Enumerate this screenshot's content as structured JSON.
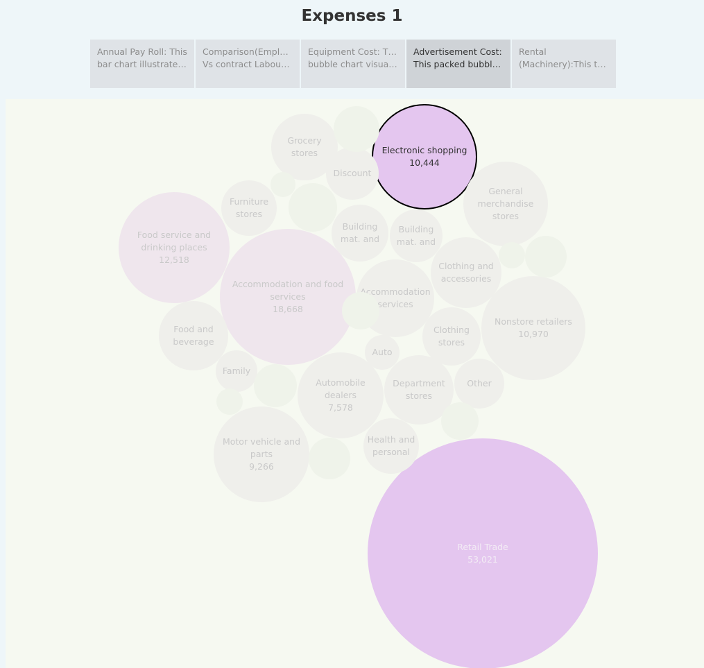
{
  "dashboard": {
    "title": "Expenses 1"
  },
  "tabs": [
    {
      "line1": "Annual Pay Roll: This",
      "line2": "bar chart illustrates t..",
      "active": false
    },
    {
      "line1": "Comparison(Employee",
      "line2": "Vs contract Labours): ..",
      "active": false
    },
    {
      "line1": "Equipment Cost: This",
      "line2": "bubble chart visualize..",
      "active": false
    },
    {
      "line1": "Advertisement Cost:",
      "line2": "This packed bubble ch..",
      "active": true
    },
    {
      "line1": "Rental",
      "line2": "(Machinery):This tree..",
      "active": false
    }
  ],
  "colors": {
    "highlight": "#e4c6ef",
    "faded_pink": "#efe6ed",
    "faded_gray": "#efefeb",
    "empty_bubble": "#eff3ea",
    "faded_text": "#c9c9c9",
    "active_text": "#333333",
    "retail_text": "#f3ecf5"
  },
  "chart_data": {
    "type": "packed_bubble",
    "bubbles": [
      {
        "name": "Retail Trade",
        "value": 53021,
        "label_lines": [
          "Retail Trade"
        ],
        "value_label": "53,021",
        "style": "highlight"
      },
      {
        "name": "Accommodation and food services",
        "value": 18668,
        "label_lines": [
          "Accommodation and food",
          "services"
        ],
        "value_label": "18,668",
        "style": "faded_pink"
      },
      {
        "name": "Food service and drinking places",
        "value": 12518,
        "label_lines": [
          "Food service and",
          "drinking places"
        ],
        "value_label": "12,518",
        "style": "faded_pink"
      },
      {
        "name": "Nonstore retailers",
        "value": 10970,
        "label_lines": [
          "Nonstore retailers"
        ],
        "value_label": "10,970",
        "style": "faded_gray"
      },
      {
        "name": "Electronic shopping",
        "value": 10444,
        "label_lines": [
          "Electronic shopping"
        ],
        "value_label": "10,444",
        "style": "selected"
      },
      {
        "name": "Motor vehicle and parts",
        "value": 9266,
        "label_lines": [
          "Motor vehicle and",
          "parts"
        ],
        "value_label": "9,266",
        "style": "faded_gray"
      },
      {
        "name": "Automobile dealers",
        "value": 7578,
        "label_lines": [
          "Automobile",
          "dealers"
        ],
        "value_label": "7,578",
        "style": "faded_gray"
      },
      {
        "name": "General merchandise stores",
        "value": null,
        "label_lines": [
          "General",
          "merchandise",
          "stores"
        ],
        "value_label": "",
        "style": "faded_gray"
      },
      {
        "name": "Accommodation services",
        "value": null,
        "label_lines": [
          "Accommodation",
          "services"
        ],
        "value_label": "",
        "style": "faded_gray"
      },
      {
        "name": "Department stores",
        "value": null,
        "label_lines": [
          "Department",
          "stores"
        ],
        "value_label": "",
        "style": "faded_gray"
      },
      {
        "name": "Clothing and accessories",
        "value": null,
        "label_lines": [
          "Clothing and",
          "accessories"
        ],
        "value_label": "",
        "style": "faded_gray"
      },
      {
        "name": "Food and beverage",
        "value": null,
        "label_lines": [
          "Food and",
          "beverage"
        ],
        "value_label": "",
        "style": "faded_gray"
      },
      {
        "name": "Grocery stores",
        "value": null,
        "label_lines": [
          "Grocery",
          "stores"
        ],
        "value_label": "",
        "style": "faded_gray"
      },
      {
        "name": "Building mat. and (1)",
        "value": null,
        "label_lines": [
          "Building",
          "mat. and"
        ],
        "value_label": "",
        "style": "faded_gray"
      },
      {
        "name": "Clothing stores",
        "value": null,
        "label_lines": [
          "Clothing",
          "stores"
        ],
        "value_label": "",
        "style": "faded_gray"
      },
      {
        "name": "Building mat. and (2)",
        "value": null,
        "label_lines": [
          "Building",
          "mat. and"
        ],
        "value_label": "",
        "style": "faded_gray"
      },
      {
        "name": "Health and personal",
        "value": null,
        "label_lines": [
          "Health and",
          "personal"
        ],
        "value_label": "",
        "style": "faded_gray"
      },
      {
        "name": "Furniture stores",
        "value": null,
        "label_lines": [
          "Furniture",
          "stores"
        ],
        "value_label": "",
        "style": "faded_gray"
      },
      {
        "name": "Discount",
        "value": null,
        "label_lines": [
          "Discount"
        ],
        "value_label": "",
        "style": "faded_gray"
      },
      {
        "name": "Other",
        "value": null,
        "label_lines": [
          "Other"
        ],
        "value_label": "",
        "style": "faded_gray"
      },
      {
        "name": "Family",
        "value": null,
        "label_lines": [
          "Family"
        ],
        "value_label": "",
        "style": "faded_gray"
      },
      {
        "name": "Auto",
        "value": null,
        "label_lines": [
          "Auto"
        ],
        "value_label": "",
        "style": "faded_gray"
      },
      {
        "name": "",
        "value": null,
        "label_lines": [],
        "value_label": "",
        "style": "empty"
      },
      {
        "name": "",
        "value": null,
        "label_lines": [],
        "value_label": "",
        "style": "empty"
      },
      {
        "name": "",
        "value": null,
        "label_lines": [],
        "value_label": "",
        "style": "empty"
      },
      {
        "name": "",
        "value": null,
        "label_lines": [],
        "value_label": "",
        "style": "empty"
      },
      {
        "name": "",
        "value": null,
        "label_lines": [],
        "value_label": "",
        "style": "empty"
      },
      {
        "name": "",
        "value": null,
        "label_lines": [],
        "value_label": "",
        "style": "empty"
      },
      {
        "name": "",
        "value": null,
        "label_lines": [],
        "value_label": "",
        "style": "empty"
      },
      {
        "name": "",
        "value": null,
        "label_lines": [],
        "value_label": "",
        "style": "empty"
      },
      {
        "name": "",
        "value": null,
        "label_lines": [],
        "value_label": "",
        "style": "empty"
      },
      {
        "name": "",
        "value": null,
        "label_lines": [],
        "value_label": "",
        "style": "empty"
      }
    ]
  }
}
